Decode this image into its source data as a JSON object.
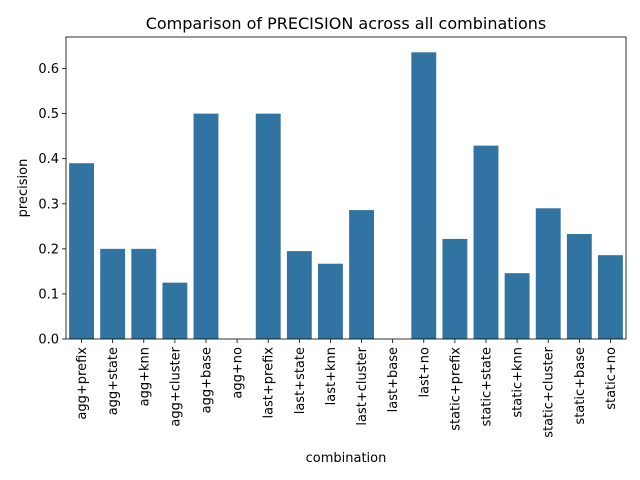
{
  "chart_data": {
    "type": "bar",
    "title": "Comparison of PRECISION across all combinations",
    "xlabel": "combination",
    "ylabel": "precision",
    "categories": [
      "agg+prefix",
      "agg+state",
      "agg+knn",
      "agg+cluster",
      "agg+base",
      "agg+no",
      "last+prefix",
      "last+state",
      "last+knn",
      "last+cluster",
      "last+base",
      "last+no",
      "static+prefix",
      "static+state",
      "static+knn",
      "static+cluster",
      "static+base",
      "static+no"
    ],
    "values": [
      0.39,
      0.2,
      0.2,
      0.125,
      0.5,
      0.0,
      0.5,
      0.195,
      0.167,
      0.286,
      0.0,
      0.636,
      0.222,
      0.429,
      0.146,
      0.29,
      0.233,
      0.186
    ],
    "ylim": [
      0,
      0.67
    ],
    "yticks": [
      "0.0",
      "0.1",
      "0.2",
      "0.3",
      "0.4",
      "0.5",
      "0.6"
    ],
    "bar_color": "#3274a1",
    "grid": false,
    "legend": "none"
  }
}
